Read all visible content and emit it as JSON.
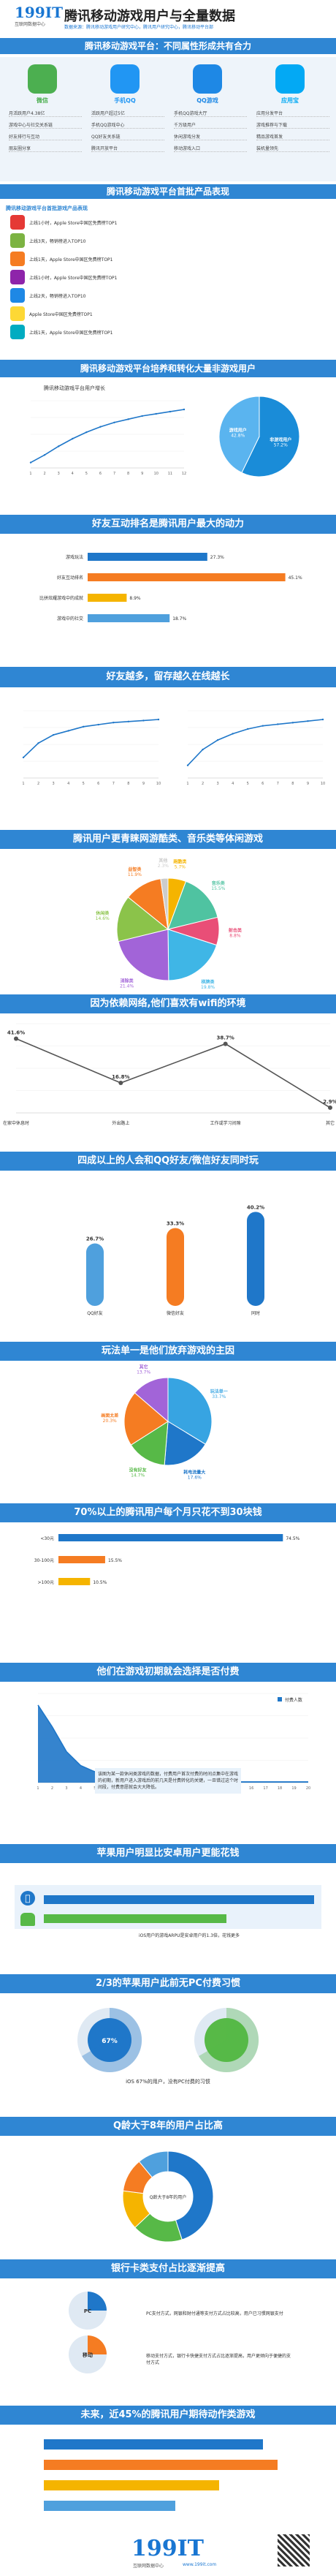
{
  "header": {
    "logo_num": "199IT",
    "logo_sub": "互联网数据中心",
    "title": "腾讯移动游戏用户与全量数据",
    "desc": "数据来源：腾讯移动游戏用户研究中心，腾讯用户研究中心，腾讯移动平台部"
  },
  "s1": {
    "banner": "腾讯移动游戏平台：不同属性形成共有合力",
    "apps": [
      {
        "name": "微信",
        "color": "#4caf50",
        "lines": [
          "月活跃用户4.38亿",
          "游戏中心与社交关系链",
          "好友排行与互动",
          "朋友圈分享"
        ]
      },
      {
        "name": "手机QQ",
        "color": "#2196f3",
        "lines": [
          "活跃用户超过5亿",
          "手机QQ游戏中心",
          "QQ好友关系链",
          "腾讯开放平台"
        ]
      },
      {
        "name": "QQ游戏",
        "color": "#1e88e5",
        "lines": [
          "手机QQ游戏大厅",
          "千万级用户",
          "休闲游戏分发",
          "移动游戏入口"
        ]
      },
      {
        "name": "应用宝",
        "color": "#03a9f4",
        "lines": [
          "应用分发平台",
          "游戏推荐与下载",
          "精品游戏首发",
          "装机量领先"
        ]
      }
    ]
  },
  "s2": {
    "banner": "腾讯移动游戏平台首批产品表现",
    "sub": "腾讯移动游戏平台首批游戏产品表现",
    "items": [
      "上线1小时，Apple Store中国区免费榜TOP1",
      "上线3天，畅销榜进入TOP10",
      "上线1天，Apple Store中国区免费榜TOP1",
      "上线1小时，Apple Store中国区免费榜TOP1",
      "上线2天，畅销榜进入TOP10",
      "Apple Store中国区免费榜TOP1",
      "上线1天，Apple Store中国区免费榜TOP1"
    ]
  },
  "s3": {
    "banner": "腾讯移动游戏平台培养和转化大量非游戏用户",
    "line_title": "腾讯移动游戏平台用户增长",
    "pie_labels": [
      "非游戏用户",
      "游戏用户"
    ]
  },
  "s4": {
    "banner": "好友互动排名是腾讯用户最大的动力"
  },
  "s5": {
    "banner": "好友越多，留存越久在线越长"
  },
  "s6": {
    "banner": "腾讯用户更青睐网游酷类、音乐类等体闲游戏"
  },
  "s7": {
    "banner": "因为依赖网络,他们喜欢有wifi的环境"
  },
  "s8": {
    "banner": "四成以上的人会和QQ好友/微信好友同时玩"
  },
  "s9": {
    "banner": "玩法单一是他们放弃游戏的主因"
  },
  "s10": {
    "banner": "70%以上的腾讯用户每个月只花不到30块钱"
  },
  "s11": {
    "banner": "他们在游戏初期就会选择是否付费",
    "note": "该图为某一款休闲类游戏的数据，付费用户首次付费的时间点集中在游戏的初期，新用户进入游戏后的前几天是付费转化的关键，一旦错过这个时间段，付费意愿就会大大降低。",
    "legend": "付费人数"
  },
  "s12": {
    "banner": "苹果用户明显比安卓用户更能花钱",
    "note": "iOS用户的游戏ARPU是安卓用户的1.3倍，花钱更多"
  },
  "s13": {
    "banner": "2/3的苹果用户此前无PC付费习惯",
    "pct": "67%",
    "note": "iOS 67%的用户，没有PC付费的习惯"
  },
  "s14": {
    "banner": "Q龄大于8年的用户占比高",
    "center": "Q龄大于8年的用户"
  },
  "s15": {
    "banner": "银行卡类支付占比逐渐提高",
    "note1": "PC支付方式，网银和财付通等支付方式占比较高，用户已习惯网银支付",
    "note2": "移动支付方式，银行卡快捷支付方式占比逐渐提高，用户更倾向于便捷的支付方式",
    "label1": "PC",
    "label2": "移动"
  },
  "s16": {
    "banner": "未来，近45%的腾讯用户期待动作类游戏"
  },
  "footer": {
    "logo_num": "199IT",
    "logo_sub": "互联网数据中心",
    "url": "www.199it.com"
  },
  "chart_data": [
    {
      "type": "line",
      "title": "腾讯移动游戏平台用户增长",
      "x": [
        "1",
        "2",
        "3",
        "4",
        "5",
        "6",
        "7",
        "8",
        "9",
        "10",
        "11",
        "12"
      ],
      "series": [
        {
          "values": [
            5,
            12,
            20,
            27,
            33,
            38,
            42,
            45,
            48,
            50,
            52,
            54
          ]
        }
      ]
    },
    {
      "type": "pie",
      "labels": [
        "非游戏用户",
        "游戏用户"
      ],
      "values": [
        57.2,
        42.8
      ],
      "colors": [
        "#1a8cd8",
        "#5ab4ef"
      ]
    },
    {
      "type": "bar",
      "categories": [
        "游戏玩法",
        "好友互动排名",
        "比拼炫耀游戏中的成就",
        "游戏中的社交"
      ],
      "values": [
        27.3,
        45.1,
        8.9,
        18.7
      ],
      "colors": [
        "#1f77c9",
        "#f57c22",
        "#f5b400",
        "#4fa0dd"
      ],
      "xlim": [
        0,
        50
      ]
    },
    {
      "type": "line",
      "x": [
        "1",
        "2",
        "3",
        "4",
        "5",
        "6",
        "7",
        "8",
        "9",
        "10"
      ],
      "series": [
        {
          "values": [
            10,
            17,
            21,
            23,
            25,
            26,
            27,
            27.5,
            28,
            28.5
          ]
        }
      ]
    },
    {
      "type": "line",
      "x": [
        "1",
        "2",
        "3",
        "4",
        "5",
        "6",
        "7",
        "8",
        "9",
        "10"
      ],
      "series": [
        {
          "values": [
            4,
            9,
            12,
            14,
            15.5,
            16.5,
            17,
            17.5,
            18,
            18.5
          ]
        }
      ]
    },
    {
      "type": "pie",
      "labels": [
        "跑酷类",
        "音乐类",
        "射击类",
        "棋牌类",
        "消除类",
        "休闲类",
        "益智类",
        "其他"
      ],
      "values": [
        5.7,
        15.5,
        8.8,
        19.8,
        21.4,
        14.6,
        11.9,
        2.3
      ],
      "colors": [
        "#f5b400",
        "#4fc3a1",
        "#e94e77",
        "#3fb6e6",
        "#a264d8",
        "#8bc34a",
        "#f57c22",
        "#ccc"
      ]
    },
    {
      "type": "line",
      "categories": [
        "在家中休息时",
        "外出路上",
        "工作或学习间隙",
        "其它"
      ],
      "series": [
        {
          "values": [
            41.6,
            16.8,
            38.7,
            2.9
          ]
        }
      ],
      "ylim": [
        0,
        50
      ]
    },
    {
      "type": "bar",
      "categories": [
        "QQ好友",
        "微信好友",
        "同时"
      ],
      "values": [
        26.7,
        33.3,
        40.2
      ],
      "colors": [
        "#4fa0dd",
        "#f57c22",
        "#1f77c9"
      ],
      "ylim": [
        0,
        50
      ]
    },
    {
      "type": "pie",
      "labels": [
        "玩法单一",
        "耗电流量大",
        "没有好友",
        "画面太差",
        "其它"
      ],
      "values": [
        33.7,
        17.6,
        14.7,
        20.3,
        13.7
      ],
      "colors": [
        "#37a4e2",
        "#1f77c9",
        "#57b947",
        "#f57c22",
        "#a264d8"
      ]
    },
    {
      "type": "bar",
      "categories": [
        "<30元",
        "30-100元",
        ">100元"
      ],
      "values": [
        74.5,
        15.5,
        10.5
      ],
      "colors": [
        "#1f77c9",
        "#f57c22",
        "#f5b400"
      ],
      "xlim": [
        0,
        80
      ]
    },
    {
      "type": "area",
      "x": [
        "1",
        "2",
        "3",
        "4",
        "5",
        "6",
        "7",
        "8",
        "9",
        "10",
        "11",
        "12",
        "13",
        "14",
        "15",
        "16",
        "17",
        "18",
        "19",
        "20"
      ],
      "series": [
        {
          "name": "付费人数",
          "values": [
            100,
            72,
            40,
            22,
            14,
            9,
            7,
            5,
            4,
            3,
            3,
            2,
            2,
            2,
            1,
            1,
            1,
            1,
            1,
            1
          ]
        }
      ]
    }
  ]
}
